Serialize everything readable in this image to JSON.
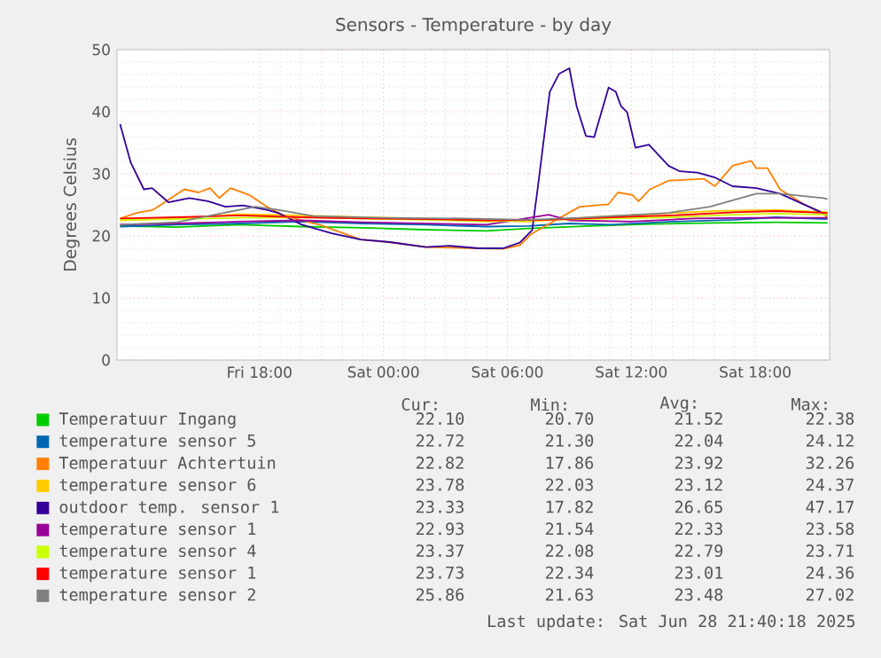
{
  "chart_data": {
    "type": "line",
    "title": "Sensors - Temperature - by day",
    "ylabel": "Degrees Celsius",
    "xlim": [
      "2025-06-27T11:06",
      "2025-06-28T21:36"
    ],
    "ylim": [
      0,
      50
    ],
    "xticks": [
      {
        "value": "2025-06-27T18:00",
        "label": "Fri 18:00"
      },
      {
        "value": "2025-06-28T00:00",
        "label": "Sat 00:00"
      },
      {
        "value": "2025-06-28T06:00",
        "label": "Sat 06:00"
      },
      {
        "value": "2025-06-28T12:00",
        "label": "Sat 12:00"
      },
      {
        "value": "2025-06-28T18:00",
        "label": "Sat 18:00"
      }
    ],
    "yticks": [
      0,
      10,
      20,
      30,
      40,
      50
    ],
    "grid": true,
    "legend": "bottom",
    "series": [
      {
        "name": "Temperatuur Ingang",
        "color": "#00cc00",
        "x": [
          "2025-06-27T11:15",
          "2025-06-27T14:00",
          "2025-06-27T17:00",
          "2025-06-27T20:00",
          "2025-06-27T23:00",
          "2025-06-28T02:00",
          "2025-06-28T05:00",
          "2025-06-28T07:00",
          "2025-06-28T10:00",
          "2025-06-28T13:00",
          "2025-06-28T16:00",
          "2025-06-28T19:00",
          "2025-06-28T21:30"
        ],
        "values": [
          21.6,
          21.4,
          21.8,
          21.5,
          21.3,
          21.0,
          20.8,
          21.2,
          21.6,
          21.9,
          22.1,
          22.2,
          22.1
        ]
      },
      {
        "name": "temperature sensor 5",
        "color": "#0066b3",
        "x": [
          "2025-06-27T11:15",
          "2025-06-27T14:00",
          "2025-06-27T17:00",
          "2025-06-27T20:00",
          "2025-06-27T23:00",
          "2025-06-28T02:00",
          "2025-06-28T05:00",
          "2025-06-28T07:00",
          "2025-06-28T09:00",
          "2025-06-28T11:00",
          "2025-06-28T14:00",
          "2025-06-28T17:00",
          "2025-06-28T19:00",
          "2025-06-28T21:30"
        ],
        "values": [
          21.5,
          21.8,
          22.0,
          22.3,
          22.0,
          21.8,
          21.5,
          21.6,
          22.0,
          21.8,
          22.3,
          22.6,
          23.0,
          22.7
        ]
      },
      {
        "name": "Temperatuur Achtertuin",
        "color": "#ff8000",
        "x": [
          "2025-06-27T11:15",
          "2025-06-27T12:03",
          "2025-06-27T12:51",
          "2025-06-27T13:30",
          "2025-06-27T14:21",
          "2025-06-27T15:03",
          "2025-06-27T15:36",
          "2025-06-27T16:03",
          "2025-06-27T16:36",
          "2025-06-27T17:30",
          "2025-06-27T18:21",
          "2025-06-27T19:12",
          "2025-06-27T20:54",
          "2025-06-27T22:54",
          "2025-06-28T00:18",
          "2025-06-28T02:03",
          "2025-06-28T04:36",
          "2025-06-28T05:48",
          "2025-06-28T06:36",
          "2025-06-28T07:12",
          "2025-06-28T09:30",
          "2025-06-28T10:54",
          "2025-06-28T11:21",
          "2025-06-28T12:03",
          "2025-06-28T12:21",
          "2025-06-28T12:54",
          "2025-06-28T13:48",
          "2025-06-28T15:30",
          "2025-06-28T16:03",
          "2025-06-28T16:54",
          "2025-06-28T17:48",
          "2025-06-28T18:03",
          "2025-06-28T18:36",
          "2025-06-28T19:12",
          "2025-06-28T20:21",
          "2025-06-28T21:18",
          "2025-06-28T21:30"
        ],
        "values": [
          22.8,
          23.7,
          24.2,
          25.6,
          27.5,
          27.0,
          27.7,
          26.1,
          27.7,
          26.6,
          24.7,
          23.2,
          21.8,
          19.4,
          19.0,
          18.2,
          18.0,
          17.9,
          18.5,
          20.4,
          24.7,
          25.1,
          27.0,
          26.6,
          25.6,
          27.5,
          28.9,
          29.2,
          28.0,
          31.3,
          32.1,
          30.9,
          30.9,
          27.5,
          25.1,
          23.7,
          22.8
        ]
      },
      {
        "name": "temperature sensor 6",
        "color": "#ffcc00",
        "x": [
          "2025-06-27T11:15",
          "2025-06-27T14:00",
          "2025-06-27T17:00",
          "2025-06-27T20:00",
          "2025-06-27T23:00",
          "2025-06-28T02:00",
          "2025-06-28T05:00",
          "2025-06-28T07:00",
          "2025-06-28T10:00",
          "2025-06-28T13:00",
          "2025-06-28T16:00",
          "2025-06-28T19:00",
          "2025-06-28T21:30"
        ],
        "values": [
          22.5,
          22.8,
          23.5,
          23.3,
          23.0,
          22.8,
          22.5,
          22.3,
          23.0,
          23.5,
          24.0,
          24.2,
          23.8
        ]
      },
      {
        "name": "outdoor temp. sensor 1",
        "color": "#330099",
        "x": [
          "2025-06-27T11:15",
          "2025-06-27T11:46",
          "2025-06-27T12:24",
          "2025-06-27T12:48",
          "2025-06-27T13:21",
          "2025-06-27T13:36",
          "2025-06-27T14:36",
          "2025-06-27T15:30",
          "2025-06-27T16:21",
          "2025-06-27T17:12",
          "2025-06-27T18:21",
          "2025-06-27T18:54",
          "2025-06-27T20:03",
          "2025-06-27T21:30",
          "2025-06-27T22:54",
          "2025-06-28T00:18",
          "2025-06-28T02:03",
          "2025-06-28T03:12",
          "2025-06-28T04:36",
          "2025-06-28T05:48",
          "2025-06-28T06:36",
          "2025-06-28T07:12",
          "2025-06-28T07:30",
          "2025-06-28T08:03",
          "2025-06-28T08:30",
          "2025-06-28T09:00",
          "2025-06-28T09:21",
          "2025-06-28T09:48",
          "2025-06-28T10:12",
          "2025-06-28T10:54",
          "2025-06-28T11:15",
          "2025-06-28T11:30",
          "2025-06-28T11:48",
          "2025-06-28T12:12",
          "2025-06-28T12:51",
          "2025-06-28T13:48",
          "2025-06-28T14:21",
          "2025-06-28T15:12",
          "2025-06-28T16:03",
          "2025-06-28T16:54",
          "2025-06-28T18:03",
          "2025-06-28T19:12",
          "2025-06-28T20:36",
          "2025-06-28T21:30"
        ],
        "values": [
          38.0,
          31.8,
          27.5,
          27.7,
          26.1,
          25.4,
          26.1,
          25.6,
          24.7,
          24.9,
          24.2,
          23.7,
          21.8,
          20.4,
          19.4,
          19.0,
          18.2,
          18.4,
          18.0,
          18.0,
          18.9,
          20.9,
          28.5,
          43.2,
          46.1,
          47.0,
          40.9,
          36.1,
          35.9,
          43.9,
          43.2,
          40.9,
          39.9,
          34.2,
          34.7,
          31.3,
          30.4,
          30.2,
          29.4,
          28.0,
          27.7,
          26.8,
          24.7,
          23.3
        ]
      },
      {
        "name": "temperature sensor 1",
        "color": "#990099",
        "x": [
          "2025-06-27T11:15",
          "2025-06-27T14:00",
          "2025-06-27T17:00",
          "2025-06-27T20:00",
          "2025-06-27T23:00",
          "2025-06-28T02:00",
          "2025-06-28T05:00",
          "2025-06-28T08:00",
          "2025-06-28T09:00",
          "2025-06-28T12:00",
          "2025-06-28T15:00",
          "2025-06-28T18:00",
          "2025-06-28T21:30"
        ],
        "values": [
          21.8,
          22.0,
          22.3,
          22.5,
          22.2,
          22.0,
          21.8,
          23.4,
          22.5,
          22.3,
          22.8,
          22.9,
          22.9
        ]
      },
      {
        "name": "temperature sensor 4",
        "color": "#ccff00",
        "x": [
          "2025-06-27T11:15",
          "2025-06-27T14:00",
          "2025-06-27T17:00",
          "2025-06-27T20:00",
          "2025-06-27T23:00",
          "2025-06-28T02:00",
          "2025-06-28T05:00",
          "2025-06-28T08:00",
          "2025-06-28T11:00",
          "2025-06-28T14:00",
          "2025-06-28T17:00",
          "2025-06-28T19:00",
          "2025-06-28T21:30"
        ],
        "values": [
          22.6,
          22.7,
          22.9,
          23.0,
          22.8,
          22.6,
          22.3,
          22.6,
          22.8,
          23.0,
          23.4,
          23.6,
          23.4
        ]
      },
      {
        "name": "temperature sensor 1",
        "color": "#ff0000",
        "x": [
          "2025-06-27T11:15",
          "2025-06-27T14:00",
          "2025-06-27T17:00",
          "2025-06-27T20:00",
          "2025-06-27T23:00",
          "2025-06-28T02:00",
          "2025-06-28T05:00",
          "2025-06-28T08:00",
          "2025-06-28T11:00",
          "2025-06-28T14:00",
          "2025-06-28T17:00",
          "2025-06-28T19:00",
          "2025-06-28T21:30"
        ],
        "values": [
          22.8,
          23.0,
          23.3,
          23.0,
          22.8,
          22.7,
          22.5,
          22.6,
          23.0,
          23.3,
          23.8,
          24.0,
          23.7
        ]
      },
      {
        "name": "temperature sensor 2",
        "color": "#808080",
        "x": [
          "2025-06-27T11:15",
          "2025-06-27T14:00",
          "2025-06-27T15:30",
          "2025-06-27T17:48",
          "2025-06-27T18:54",
          "2025-06-27T20:36",
          "2025-06-28T00:00",
          "2025-06-28T04:00",
          "2025-06-28T07:00",
          "2025-06-28T09:30",
          "2025-06-28T13:48",
          "2025-06-28T15:48",
          "2025-06-28T18:03",
          "2025-06-28T19:12",
          "2025-06-28T21:18",
          "2025-06-28T21:30"
        ],
        "values": [
          21.8,
          22.2,
          23.2,
          24.7,
          24.2,
          23.2,
          22.9,
          22.8,
          22.6,
          22.9,
          23.7,
          24.7,
          26.8,
          26.8,
          26.1,
          25.9
        ]
      }
    ],
    "annotations": [
      "Cur:",
      "Min:",
      "Avg:",
      "Max:",
      "22.10",
      "20.70",
      "21.52",
      "22.38",
      "22.72",
      "21.30",
      "22.04",
      "24.12",
      "22.82",
      "17.86",
      "23.92",
      "32.26",
      "23.78",
      "22.03",
      "23.12",
      "24.37",
      "23.33",
      "17.82",
      "26.65",
      "47.17",
      "22.93",
      "21.54",
      "22.33",
      "23.58",
      "23.37",
      "22.08",
      "22.79",
      "23.71",
      "23.73",
      "22.34",
      "23.01",
      "24.36",
      "25.86",
      "21.63",
      "23.48",
      "27.02",
      "Last update: Sat Jun 28 21:40:18 2025"
    ]
  }
}
